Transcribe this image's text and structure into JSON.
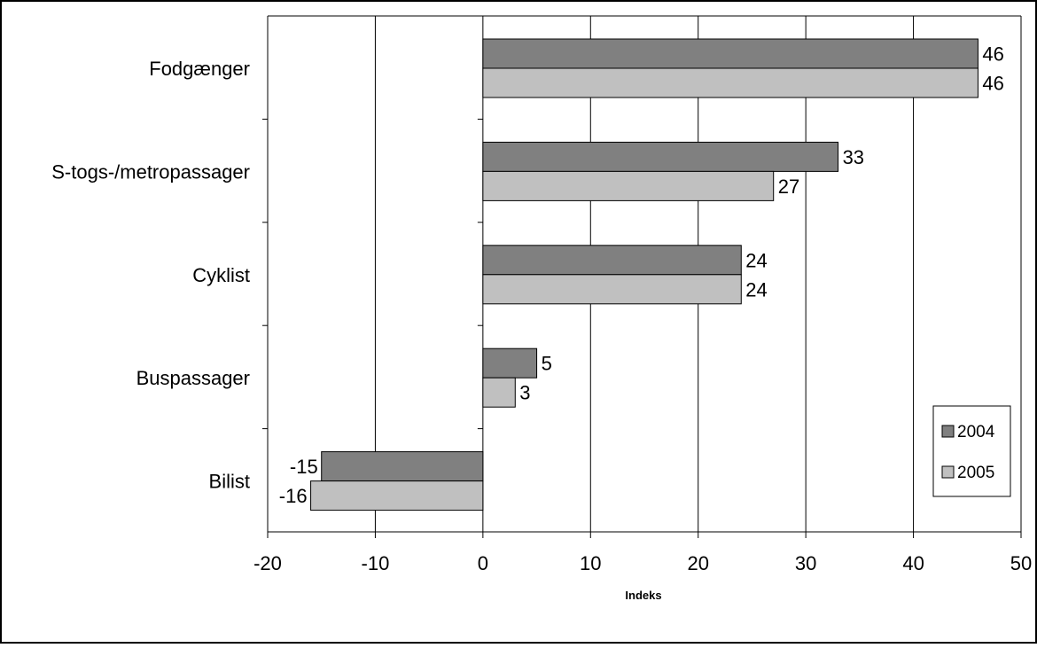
{
  "chart_data": {
    "type": "bar",
    "orientation": "horizontal",
    "title": "",
    "xlabel": "Indeks",
    "ylabel": "",
    "categories": [
      "Fodgænger",
      "S-togs-/metropassager",
      "Cyklist",
      "Buspassager",
      "Bilist"
    ],
    "series": [
      {
        "name": "2004",
        "color": "#808080",
        "values": [
          46,
          33,
          24,
          5,
          -15
        ]
      },
      {
        "name": "2005",
        "color": "#c0c0c0",
        "values": [
          46,
          27,
          24,
          3,
          -16
        ]
      }
    ],
    "xlim": [
      -20,
      50
    ],
    "xticks": [
      -20,
      -10,
      0,
      10,
      20,
      30,
      40,
      50
    ],
    "grid": "vertical",
    "legend": "bottom-right",
    "data_labels": true
  }
}
